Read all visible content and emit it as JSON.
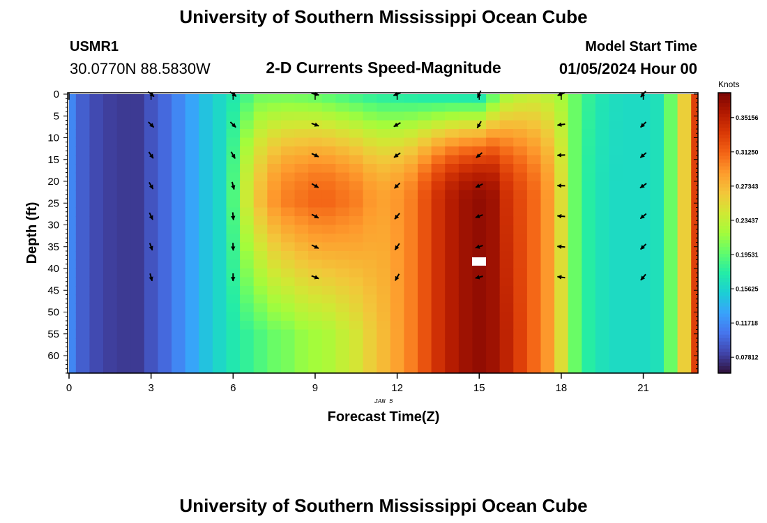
{
  "header": {
    "title": "University of Southern Mississippi Ocean Cube",
    "station_id": "USMR1",
    "station_coords": "30.0770N  88.5830W",
    "subtitle": "2-D Currents Speed-Magnitude",
    "model_start_label": "Model Start Time",
    "model_start_value": "01/05/2024 Hour 00"
  },
  "footer": {
    "title": "University of Southern Mississippi Ocean Cube"
  },
  "chart_data": {
    "type": "heatmap",
    "title": "2-D Currents Speed-Magnitude",
    "xlabel": "Forecast Time(Z)",
    "ylabel": "Depth (ft)",
    "date_label": "JAN 5",
    "xlim": [
      0,
      23
    ],
    "ylim": [
      64,
      0
    ],
    "x_ticks": [
      0,
      3,
      6,
      9,
      12,
      15,
      18,
      21
    ],
    "y_ticks": [
      0,
      5,
      10,
      15,
      20,
      25,
      30,
      35,
      40,
      45,
      50,
      55,
      60
    ],
    "colorbar": {
      "unit_label": "Knots",
      "ticks": [
        0.35156,
        0.3125,
        0.27343,
        0.23437,
        0.19531,
        0.15625,
        0.11718,
        0.07812
      ],
      "tick_labels": [
        "0.35156",
        "0.31250",
        "0.27343",
        "0.23437",
        "0.19531",
        "0.15625",
        "0.11718",
        "0.07812"
      ],
      "range": [
        0.06,
        0.38
      ],
      "colormap": [
        "#30123b",
        "#4145ab",
        "#4675ed",
        "#39a2fc",
        "#1bcfd4",
        "#24eca6",
        "#61fc6c",
        "#a4fc3b",
        "#d1e834",
        "#f3c63a",
        "#fe9b2d",
        "#f36315",
        "#d93806",
        "#b11901",
        "#7a0403"
      ]
    },
    "speed_columns": {
      "x_hours": [
        0,
        0.5,
        1,
        1.5,
        2,
        2.5,
        3,
        3.5,
        4,
        4.5,
        5,
        5.5,
        6,
        6.5,
        7,
        7.5,
        8,
        8.5,
        9,
        9.5,
        10,
        10.5,
        11,
        11.5,
        12,
        12.5,
        13,
        13.5,
        14,
        14.5,
        15,
        15.5,
        16,
        16.5,
        17,
        17.5,
        18,
        18.5,
        19,
        19.5,
        20,
        20.5,
        21,
        21.5,
        22,
        22.5,
        23
      ],
      "top_knots": [
        0.115,
        0.095,
        0.085,
        0.08,
        0.078,
        0.078,
        0.09,
        0.1,
        0.115,
        0.13,
        0.145,
        0.158,
        0.17,
        0.185,
        0.2,
        0.2,
        0.2,
        0.198,
        0.195,
        0.19,
        0.185,
        0.18,
        0.175,
        0.172,
        0.17,
        0.168,
        0.165,
        0.163,
        0.162,
        0.16,
        0.158,
        0.19,
        0.22,
        0.23,
        0.235,
        0.23,
        0.22,
        0.2,
        0.18,
        0.168,
        0.162,
        0.16,
        0.16,
        0.165,
        0.2,
        0.26,
        0.33
      ],
      "mid_knots": [
        0.115,
        0.095,
        0.085,
        0.08,
        0.078,
        0.078,
        0.09,
        0.1,
        0.115,
        0.13,
        0.145,
        0.158,
        0.19,
        0.24,
        0.27,
        0.29,
        0.3,
        0.305,
        0.31,
        0.31,
        0.305,
        0.3,
        0.29,
        0.285,
        0.29,
        0.3,
        0.32,
        0.34,
        0.355,
        0.365,
        0.37,
        0.365,
        0.34,
        0.325,
        0.31,
        0.29,
        0.25,
        0.2,
        0.175,
        0.165,
        0.16,
        0.16,
        0.16,
        0.165,
        0.2,
        0.26,
        0.33
      ],
      "bottom_knots": [
        0.115,
        0.095,
        0.085,
        0.08,
        0.078,
        0.078,
        0.09,
        0.1,
        0.115,
        0.13,
        0.145,
        0.158,
        0.17,
        0.18,
        0.19,
        0.2,
        0.205,
        0.215,
        0.22,
        0.225,
        0.235,
        0.245,
        0.26,
        0.272,
        0.285,
        0.3,
        0.32,
        0.34,
        0.355,
        0.365,
        0.37,
        0.365,
        0.35,
        0.33,
        0.31,
        0.29,
        0.25,
        0.2,
        0.175,
        0.165,
        0.16,
        0.16,
        0.16,
        0.165,
        0.2,
        0.26,
        0.33
      ]
    },
    "vectors": {
      "x_hours": [
        3,
        6,
        9,
        12,
        15,
        18,
        21
      ],
      "depth_ft": [
        0,
        7,
        14,
        21,
        28,
        35,
        42
      ],
      "direction_deg": [
        [
          130,
          135,
          145,
          150,
          155,
          160,
          165
        ],
        [
          125,
          135,
          150,
          165,
          175,
          178,
          180
        ],
        [
          105,
          110,
          115,
          120,
          118,
          115,
          110
        ],
        [
          250,
          240,
          235,
          225,
          220,
          215,
          210
        ],
        [
          205,
          210,
          230,
          245,
          250,
          252,
          255
        ],
        [
          250,
          262,
          268,
          272,
          275,
          275,
          278
        ],
        [
          220,
          225,
          230,
          235,
          230,
          225,
          220
        ]
      ]
    }
  }
}
